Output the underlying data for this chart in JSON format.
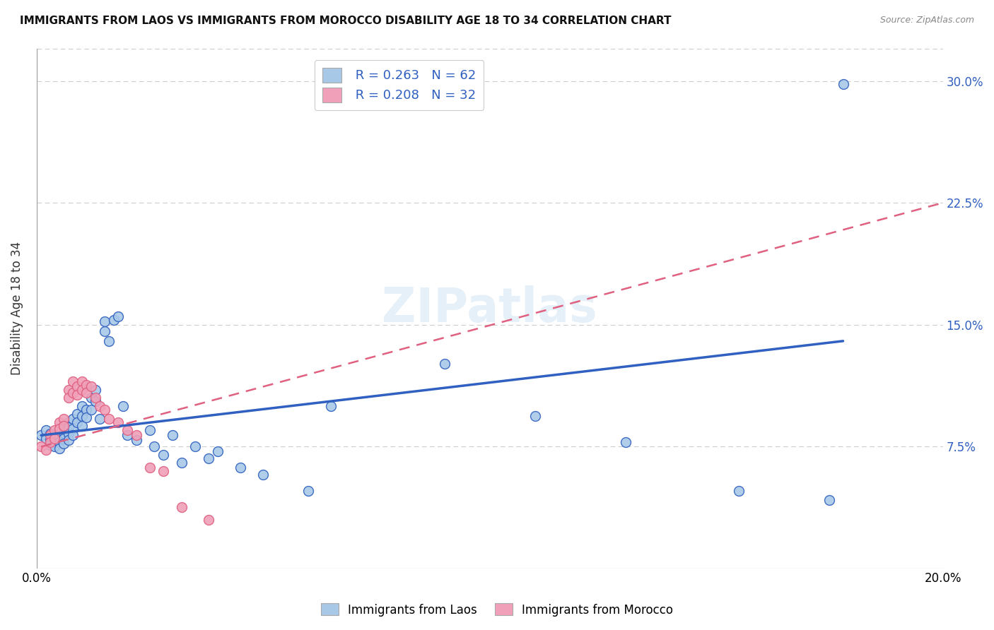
{
  "title": "IMMIGRANTS FROM LAOS VS IMMIGRANTS FROM MOROCCO DISABILITY AGE 18 TO 34 CORRELATION CHART",
  "source": "Source: ZipAtlas.com",
  "ylabel": "Disability Age 18 to 34",
  "xlim": [
    0.0,
    0.2
  ],
  "ylim": [
    0.0,
    0.32
  ],
  "xticks": [
    0.0,
    0.05,
    0.1,
    0.15,
    0.2
  ],
  "xticklabels": [
    "0.0%",
    "",
    "",
    "",
    "20.0%"
  ],
  "yticks": [
    0.075,
    0.15,
    0.225,
    0.3
  ],
  "yticklabels": [
    "7.5%",
    "15.0%",
    "22.5%",
    "30.0%"
  ],
  "legend_r1": "R = 0.263",
  "legend_n1": "N = 62",
  "legend_r2": "R = 0.208",
  "legend_n2": "N = 32",
  "color_laos": "#a8c8e8",
  "color_morocco": "#f0a0b8",
  "color_laos_line": "#3060c0",
  "color_morocco_line": "#e06080",
  "laos_x": [
    0.001,
    0.002,
    0.002,
    0.003,
    0.003,
    0.003,
    0.004,
    0.004,
    0.004,
    0.005,
    0.005,
    0.005,
    0.005,
    0.006,
    0.006,
    0.006,
    0.006,
    0.007,
    0.007,
    0.007,
    0.007,
    0.008,
    0.008,
    0.008,
    0.009,
    0.009,
    0.01,
    0.01,
    0.01,
    0.011,
    0.011,
    0.012,
    0.012,
    0.013,
    0.013,
    0.014,
    0.015,
    0.015,
    0.016,
    0.017,
    0.018,
    0.019,
    0.02,
    0.022,
    0.025,
    0.026,
    0.028,
    0.03,
    0.032,
    0.035,
    0.038,
    0.04,
    0.045,
    0.05,
    0.06,
    0.065,
    0.09,
    0.11,
    0.13,
    0.155,
    0.175,
    0.178
  ],
  "laos_y": [
    0.082,
    0.085,
    0.08,
    0.083,
    0.079,
    0.076,
    0.082,
    0.078,
    0.075,
    0.085,
    0.081,
    0.078,
    0.074,
    0.088,
    0.084,
    0.08,
    0.077,
    0.09,
    0.087,
    0.083,
    0.079,
    0.092,
    0.086,
    0.082,
    0.095,
    0.09,
    0.1,
    0.094,
    0.088,
    0.098,
    0.093,
    0.105,
    0.098,
    0.11,
    0.103,
    0.092,
    0.146,
    0.152,
    0.14,
    0.153,
    0.155,
    0.1,
    0.082,
    0.079,
    0.085,
    0.075,
    0.07,
    0.082,
    0.065,
    0.075,
    0.068,
    0.072,
    0.062,
    0.058,
    0.048,
    0.1,
    0.126,
    0.094,
    0.078,
    0.048,
    0.042,
    0.298
  ],
  "morocco_x": [
    0.001,
    0.002,
    0.003,
    0.003,
    0.004,
    0.004,
    0.005,
    0.005,
    0.006,
    0.006,
    0.007,
    0.007,
    0.008,
    0.008,
    0.009,
    0.009,
    0.01,
    0.01,
    0.011,
    0.011,
    0.012,
    0.013,
    0.014,
    0.015,
    0.016,
    0.018,
    0.02,
    0.022,
    0.025,
    0.028,
    0.032,
    0.038
  ],
  "morocco_y": [
    0.075,
    0.073,
    0.082,
    0.078,
    0.085,
    0.08,
    0.09,
    0.086,
    0.092,
    0.088,
    0.11,
    0.105,
    0.115,
    0.108,
    0.112,
    0.107,
    0.115,
    0.11,
    0.113,
    0.108,
    0.112,
    0.105,
    0.1,
    0.098,
    0.092,
    0.09,
    0.085,
    0.082,
    0.062,
    0.06,
    0.038,
    0.03
  ],
  "background_color": "#ffffff",
  "grid_color": "#cccccc",
  "laos_line_x": [
    0.001,
    0.178
  ],
  "laos_line_y": [
    0.082,
    0.14
  ],
  "morocco_line_x": [
    0.001,
    0.2
  ],
  "morocco_line_y": [
    0.075,
    0.225
  ]
}
